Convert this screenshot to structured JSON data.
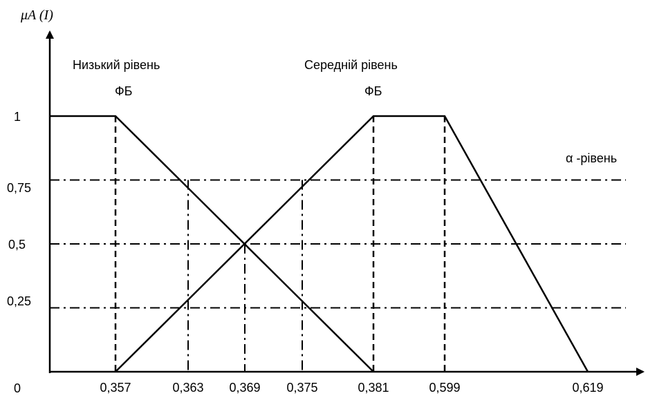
{
  "chart_data": {
    "type": "line",
    "title": "",
    "ylabel": "μA (I)",
    "xlabel": "",
    "x_ticks": [
      "0,357",
      "0,363",
      "0,369",
      "0,375",
      "0,381",
      "0,599",
      "0,619"
    ],
    "y_ticks": [
      "0",
      "0,25",
      "0,5",
      "0,75",
      "1"
    ],
    "y_tick_values": [
      0,
      0.25,
      0.5,
      0.75,
      1
    ],
    "ylim": [
      0,
      1
    ],
    "origin_label": "0",
    "grid": "dash-dot horizontal lines at α-levels 0.25, 0.5, 0.75; dashed verticals at 0.357, 0.381, 0.599",
    "series": [
      {
        "name": "Низький рівень ФБ",
        "label_lines": [
          "Низький рівень",
          "ФБ"
        ],
        "x": [
          null,
          "0,357",
          "0,381"
        ],
        "y": [
          1,
          1,
          0
        ]
      },
      {
        "name": "Середній рівень ФБ",
        "label_lines": [
          "Середній рівень",
          "ФБ"
        ],
        "x": [
          "0,357",
          "0,381",
          "0,599",
          "0,619"
        ],
        "y": [
          0,
          1,
          1,
          0
        ]
      }
    ],
    "annotations": [
      "α -рівень"
    ]
  }
}
